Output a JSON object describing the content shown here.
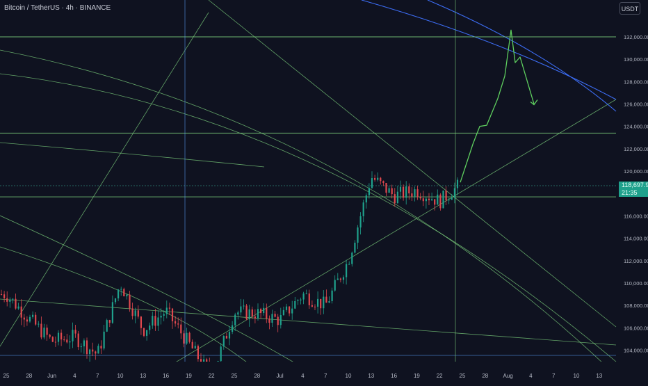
{
  "header": {
    "title": "Bitcoin / TetherUS · 4h · BINANCE"
  },
  "toolbar": {
    "currency_button": "USDT"
  },
  "last_price": {
    "value": "118,697.99",
    "countdown": "21:35"
  },
  "colors": {
    "background": "#0f1220",
    "up": "#1fa18c",
    "down": "#e0484e",
    "projection": "#5fd05f",
    "blue_channel": "#3c6cf2",
    "hline": "#78c878",
    "fan": "#7fd47f",
    "vline": "#5aa0ff",
    "axis_text": "#b4b8c4"
  },
  "chart_data": {
    "type": "candlestick",
    "title": "Bitcoin / TetherUS · 4h · BINANCE",
    "currency": "USDT",
    "y_axis_ticks": [
      "104,000.00",
      "106,000.00",
      "108,000.00",
      "110,000.00",
      "112,000.00",
      "114,000.00",
      "116,000.00",
      "118,000.00",
      "120,000.00",
      "122,000.00",
      "124,000.00",
      "126,000.00",
      "128,000.00",
      "130,000.00",
      "132,000.00"
    ],
    "x_axis_ticks": [
      "25",
      "28",
      "Jun",
      "4",
      "7",
      "10",
      "13",
      "16",
      "19",
      "22",
      "25",
      "28",
      "Jul",
      "4",
      "7",
      "10",
      "13",
      "16",
      "19",
      "22",
      "25",
      "28",
      "Aug",
      "4",
      "7",
      "10",
      "13"
    ],
    "ylim": [
      102600,
      134800
    ],
    "grid": false,
    "last_price": 118697.99,
    "horizontal_levels": [
      132000,
      123400,
      117700,
      118700
    ],
    "price_path": [
      {
        "label": "25",
        "close": 109000
      },
      {
        "label": "28",
        "close": 106800
      },
      {
        "label": "Jun",
        "close": 104800
      },
      {
        "label": "4",
        "close": 105200
      },
      {
        "label": "7",
        "close": 103600
      },
      {
        "label": "10",
        "close": 110000
      },
      {
        "label": "13",
        "close": 105800
      },
      {
        "label": "16",
        "close": 107500
      },
      {
        "label": "19",
        "close": 104600
      },
      {
        "label": "22",
        "close": 101600
      },
      {
        "label": "25",
        "close": 107400
      },
      {
        "label": "28",
        "close": 107300
      },
      {
        "label": "Jul",
        "close": 106700
      },
      {
        "label": "4",
        "close": 109000
      },
      {
        "label": "7",
        "close": 108000
      },
      {
        "label": "10",
        "close": 112000
      },
      {
        "label": "13",
        "close": 119500
      },
      {
        "label": "16",
        "close": 117800
      },
      {
        "label": "19",
        "close": 118300
      },
      {
        "label": "22",
        "close": 117300
      },
      {
        "label": "24",
        "close": 118698
      }
    ],
    "projection_path": [
      {
        "label": "25",
        "value": 119000
      },
      {
        "label": "26",
        "value": 122400
      },
      {
        "label": "27",
        "value": 124000
      },
      {
        "label": "28",
        "value": 124100
      },
      {
        "label": "29",
        "value": 126500
      },
      {
        "label": "30",
        "value": 128500
      },
      {
        "label": "31",
        "value": 132600
      },
      {
        "label": "31",
        "value": 129700
      },
      {
        "label": "Aug",
        "value": 130200
      },
      {
        "label": "2",
        "value": 126000
      }
    ]
  }
}
